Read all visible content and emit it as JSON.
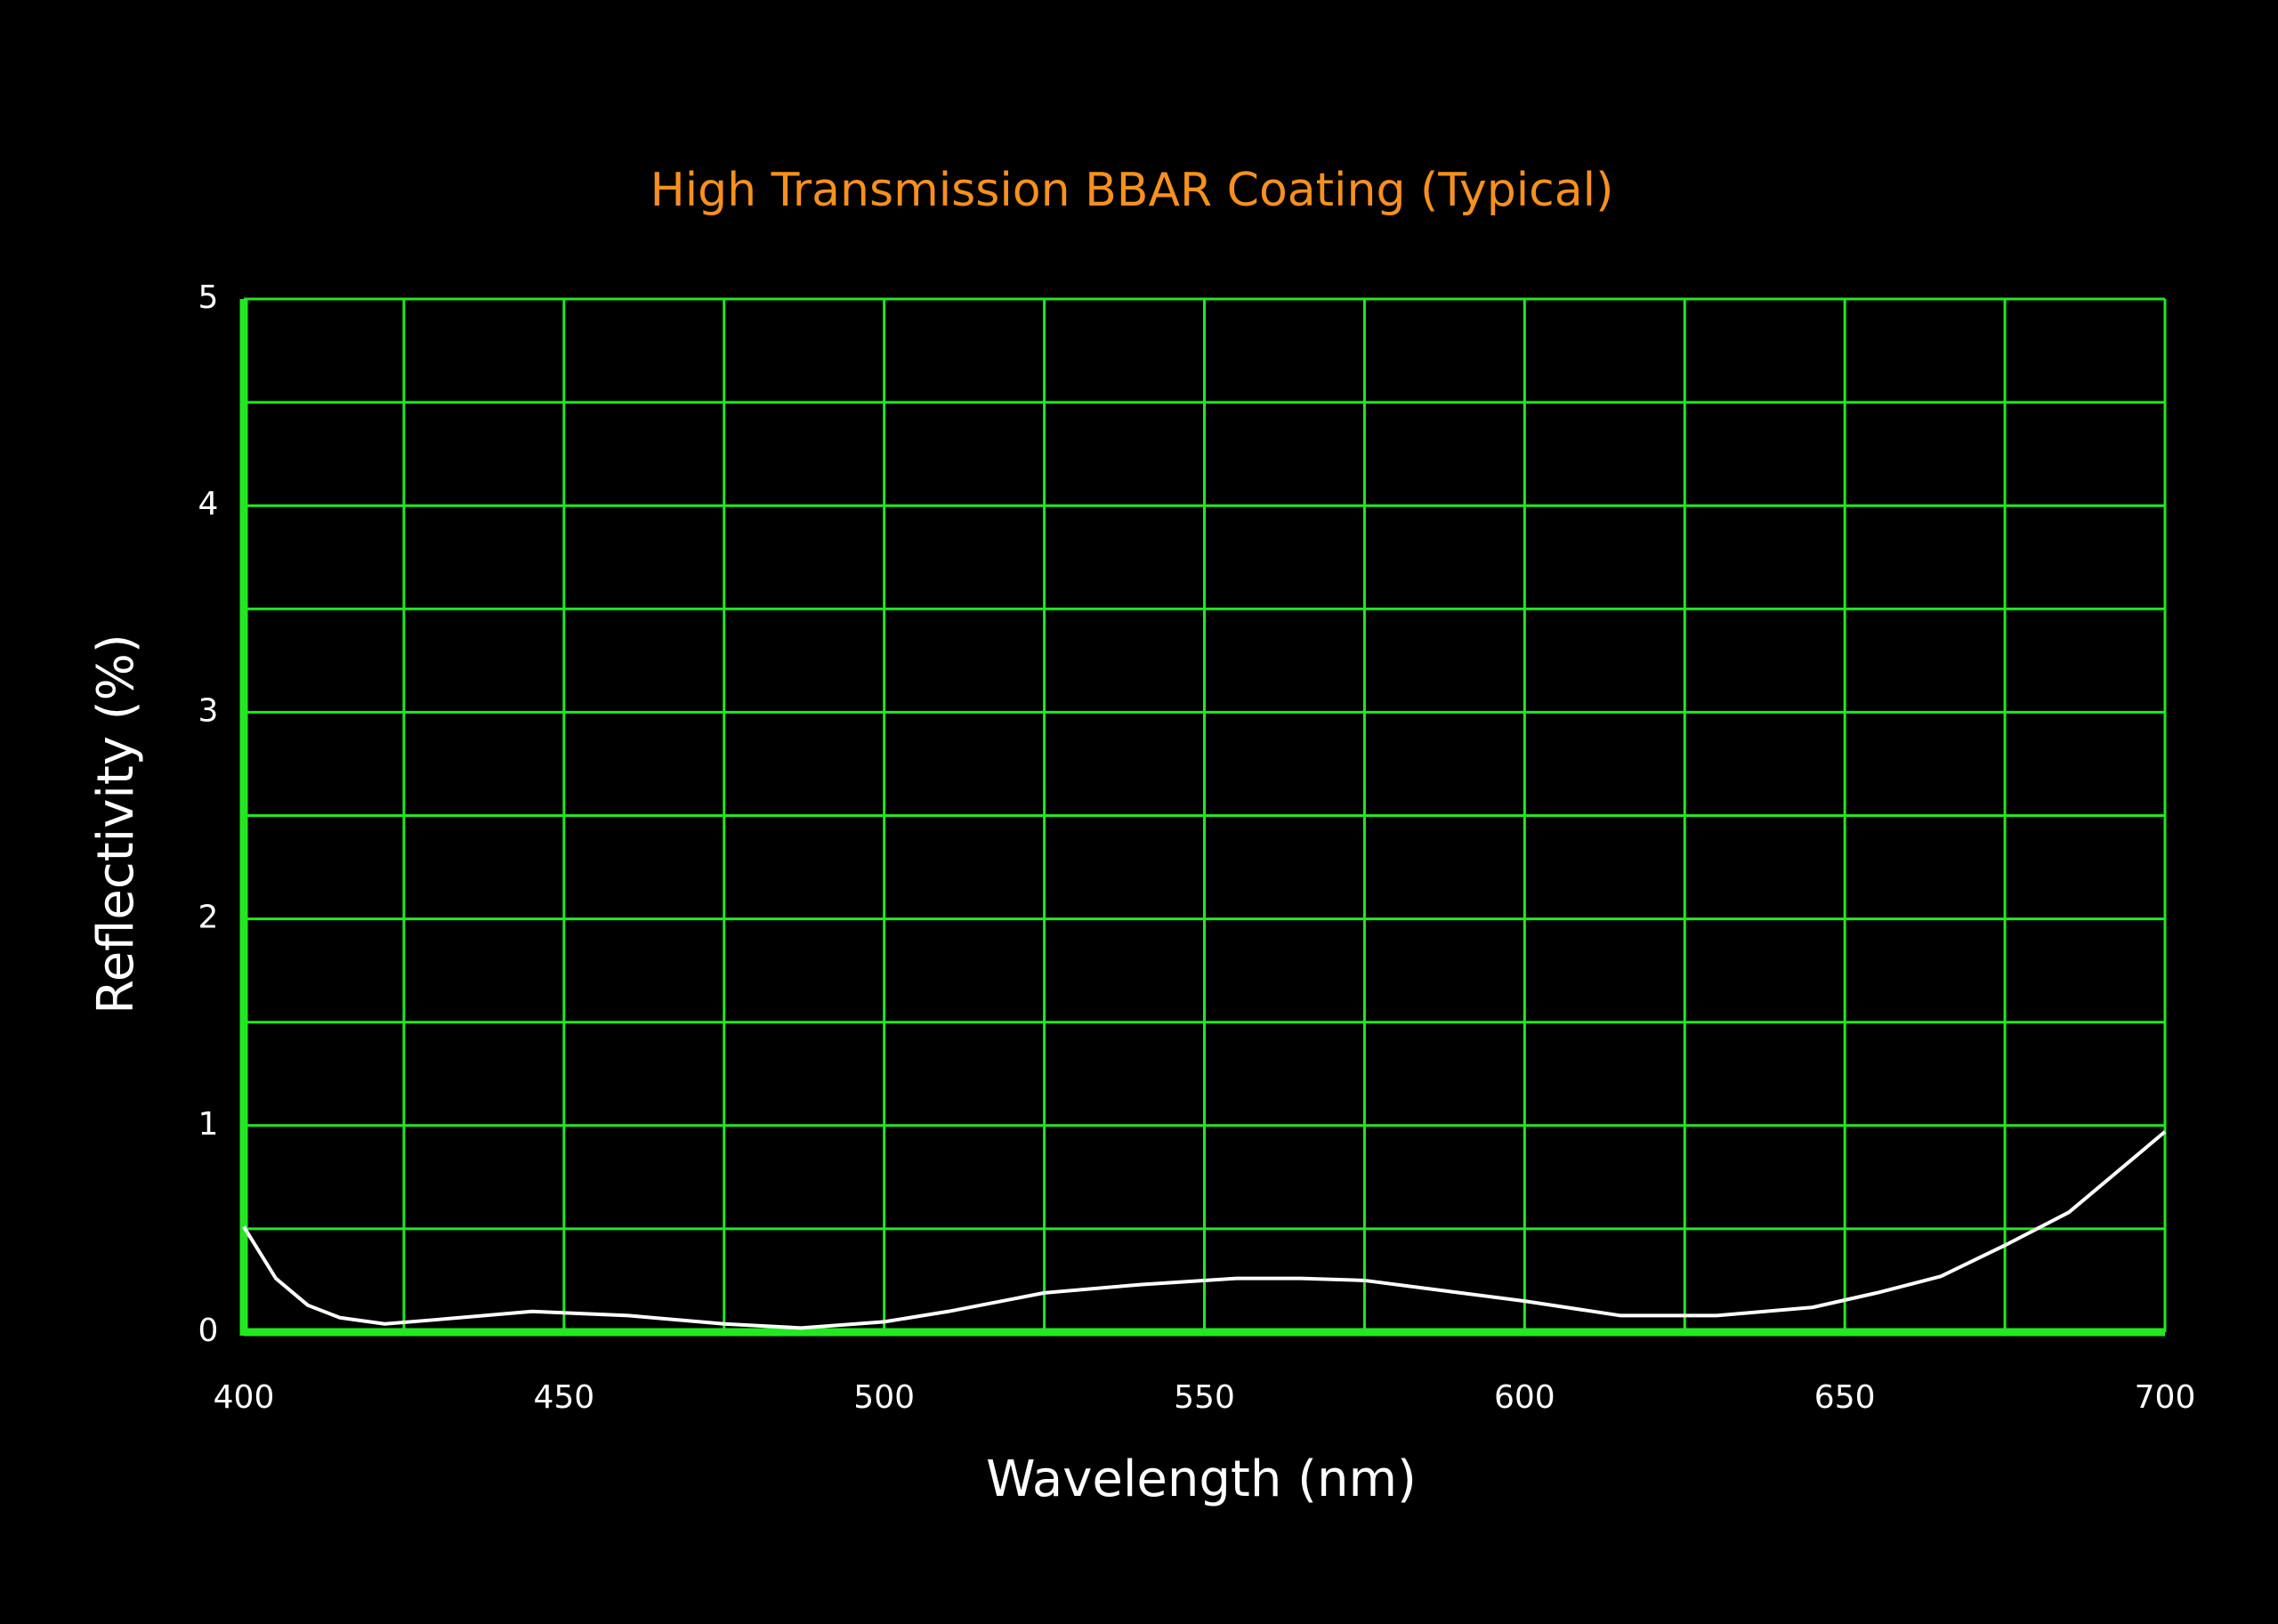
{
  "chart_data": {
    "type": "line",
    "title": "High Transmission BBAR Coating (Typical)",
    "xlabel": "Wavelength (nm)",
    "ylabel": "Reflectivity (%)",
    "x": [
      400,
      405,
      410,
      415,
      422,
      430,
      445,
      460,
      475,
      487,
      500,
      510,
      525,
      540,
      555,
      565,
      575,
      590,
      600,
      615,
      630,
      645,
      655,
      665,
      675,
      685,
      700
    ],
    "series": [
      {
        "name": "Reflectivity",
        "color": "#ffffff",
        "values": [
          0.51,
          0.26,
          0.13,
          0.07,
          0.04,
          0.06,
          0.1,
          0.08,
          0.04,
          0.02,
          0.05,
          0.1,
          0.19,
          0.23,
          0.26,
          0.26,
          0.25,
          0.19,
          0.15,
          0.08,
          0.08,
          0.12,
          0.19,
          0.27,
          0.42,
          0.58,
          0.97
        ]
      }
    ],
    "xlim": [
      400,
      700
    ],
    "xticks": [
      400,
      450,
      500,
      550,
      600,
      650,
      700
    ],
    "ylim": [
      0,
      5
    ],
    "yticks": [
      0,
      1,
      2,
      3,
      4,
      5
    ],
    "grid": true,
    "minor_grid": true,
    "grid_color": "#22e822",
    "title_color": "#f7901e"
  }
}
